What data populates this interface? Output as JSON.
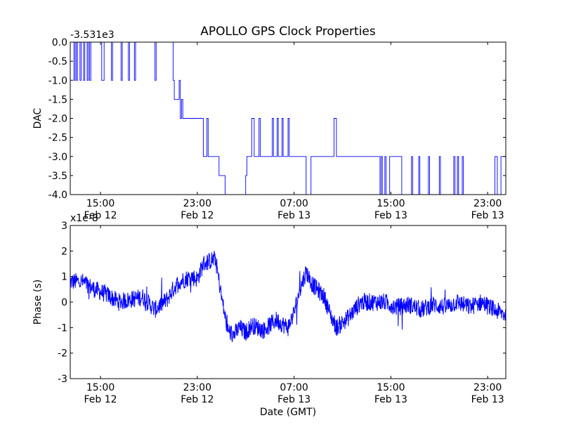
{
  "title": "APOLLO GPS Clock Properties",
  "colors": {
    "line": "#0000ff",
    "axis": "#000000",
    "background": "#ffffff"
  },
  "chart_data": [
    {
      "type": "line",
      "name": "dac-chart",
      "offset_label": "-3.531e3",
      "ylabel": "DAC",
      "xlabel": "",
      "xlim": [
        0,
        36
      ],
      "ylim": [
        -4.0,
        0.0
      ],
      "yticks": [
        0.0,
        -0.5,
        -1.0,
        -1.5,
        -2.0,
        -2.5,
        -3.0,
        -3.5,
        -4.0
      ],
      "ytick_labels": [
        "0.0",
        "-0.5",
        "-1.0",
        "-1.5",
        "-2.0",
        "-2.5",
        "-3.0",
        "-3.5",
        "-4.0"
      ],
      "xticks": [
        2.5,
        10.5,
        18.5,
        26.5,
        34.5
      ],
      "xtick_labels": [
        [
          "15:00",
          "Feb 12"
        ],
        [
          "23:00",
          "Feb 12"
        ],
        [
          "07:00",
          "Feb 13"
        ],
        [
          "15:00",
          "Feb 13"
        ],
        [
          "23:00",
          "Feb 13"
        ]
      ],
      "series": [
        {
          "name": "DAC",
          "step": true,
          "x": [
            0,
            0.3,
            0.4,
            0.5,
            0.6,
            0.8,
            0.9,
            1.1,
            1.2,
            1.4,
            1.5,
            1.6,
            1.7,
            2.6,
            2.8,
            3.4,
            3.5,
            4.2,
            4.3,
            4.8,
            4.9,
            5.3,
            5.4,
            7.0,
            7.1,
            8.5,
            8.6,
            9.0,
            9.1,
            9.2,
            9.3,
            10.9,
            11.0,
            11.3,
            11.4,
            12.2,
            12.3,
            12.8,
            13.0,
            14.5,
            14.6,
            15.0,
            15.2,
            15.6,
            15.7,
            16.7,
            16.8,
            17.1,
            17.2,
            17.5,
            17.6,
            18.0,
            18.1,
            19.4,
            19.5,
            19.9,
            20.0,
            21.8,
            22.0,
            25.5,
            25.6,
            25.7,
            25.8,
            26.0,
            26.1,
            26.4,
            26.5,
            27.3,
            27.4,
            28.2,
            28.3,
            28.8,
            28.9,
            29.6,
            29.7,
            30.5,
            30.6,
            31.7,
            31.8,
            32.0,
            32.1,
            32.4,
            32.5,
            33.6,
            35.1,
            35.3,
            35.6,
            36
          ],
          "values": [
            0,
            -1,
            0,
            -1,
            0,
            -1,
            0,
            -1,
            0,
            -1,
            0,
            -1,
            0,
            -1,
            0,
            -1,
            0,
            -1,
            0,
            -1,
            0,
            -1,
            0,
            -1,
            0,
            -1,
            -1.5,
            -1,
            -2,
            -1.5,
            -2,
            -2,
            -3,
            -2,
            -3,
            -3,
            -3.5,
            -4,
            -4,
            -3.5,
            -3,
            -2,
            -3,
            -2,
            -3,
            -2,
            -3,
            -2,
            -3,
            -2,
            -3,
            -2,
            -3,
            -3,
            -4,
            -3,
            -3,
            -2,
            -3,
            -3,
            -4,
            -3,
            -4,
            -3,
            -4,
            -3,
            -3,
            -3,
            -4,
            -3,
            -4,
            -3,
            -4,
            -3,
            -4,
            -3,
            -4,
            -3,
            -4,
            -3,
            -4,
            -3,
            -4,
            -4,
            -3,
            -4,
            -3,
            -3
          ]
        }
      ]
    },
    {
      "type": "line",
      "name": "phase-chart",
      "offset_label": "x1e-8",
      "ylabel": "Phase (s)",
      "xlabel": "Date (GMT)",
      "xlim": [
        0,
        36
      ],
      "ylim": [
        -3,
        3
      ],
      "yticks": [
        3,
        2,
        1,
        0,
        -1,
        -2,
        -3
      ],
      "ytick_labels": [
        "3",
        "2",
        "1",
        "0",
        "-1",
        "-2",
        "-3"
      ],
      "xticks": [
        2.5,
        10.5,
        18.5,
        26.5,
        34.5
      ],
      "xtick_labels": [
        [
          "15:00",
          "Feb 12"
        ],
        [
          "23:00",
          "Feb 12"
        ],
        [
          "07:00",
          "Feb 13"
        ],
        [
          "15:00",
          "Feb 13"
        ],
        [
          "23:00",
          "Feb 13"
        ]
      ],
      "series": [
        {
          "name": "Phase",
          "noisy": true,
          "noise_amplitude": 0.35,
          "x": [
            0,
            1,
            2,
            3,
            4,
            5,
            6,
            7,
            8,
            8.5,
            9,
            10,
            10.5,
            11,
            12,
            12.5,
            13,
            13.5,
            14,
            14.5,
            15,
            16,
            17,
            18,
            18.5,
            19,
            19.5,
            20,
            21,
            21.5,
            22,
            23,
            24,
            25,
            26,
            27,
            28,
            29,
            30,
            31,
            32,
            33,
            34,
            35,
            36
          ],
          "values": [
            0.8,
            0.8,
            0.5,
            0.3,
            0.0,
            0.1,
            0.2,
            -0.3,
            0.1,
            0.5,
            0.8,
            1.0,
            0.9,
            1.5,
            1.7,
            0.2,
            -1.1,
            -1.3,
            -1.0,
            -1.2,
            -0.9,
            -1.1,
            -0.7,
            -1.0,
            -0.4,
            0.5,
            1.2,
            0.7,
            0.2,
            -0.5,
            -1.0,
            -0.6,
            0.0,
            0.0,
            0.0,
            -0.2,
            -0.1,
            -0.3,
            -0.1,
            -0.2,
            0.0,
            -0.2,
            0.0,
            -0.3,
            -0.5
          ]
        }
      ]
    }
  ]
}
